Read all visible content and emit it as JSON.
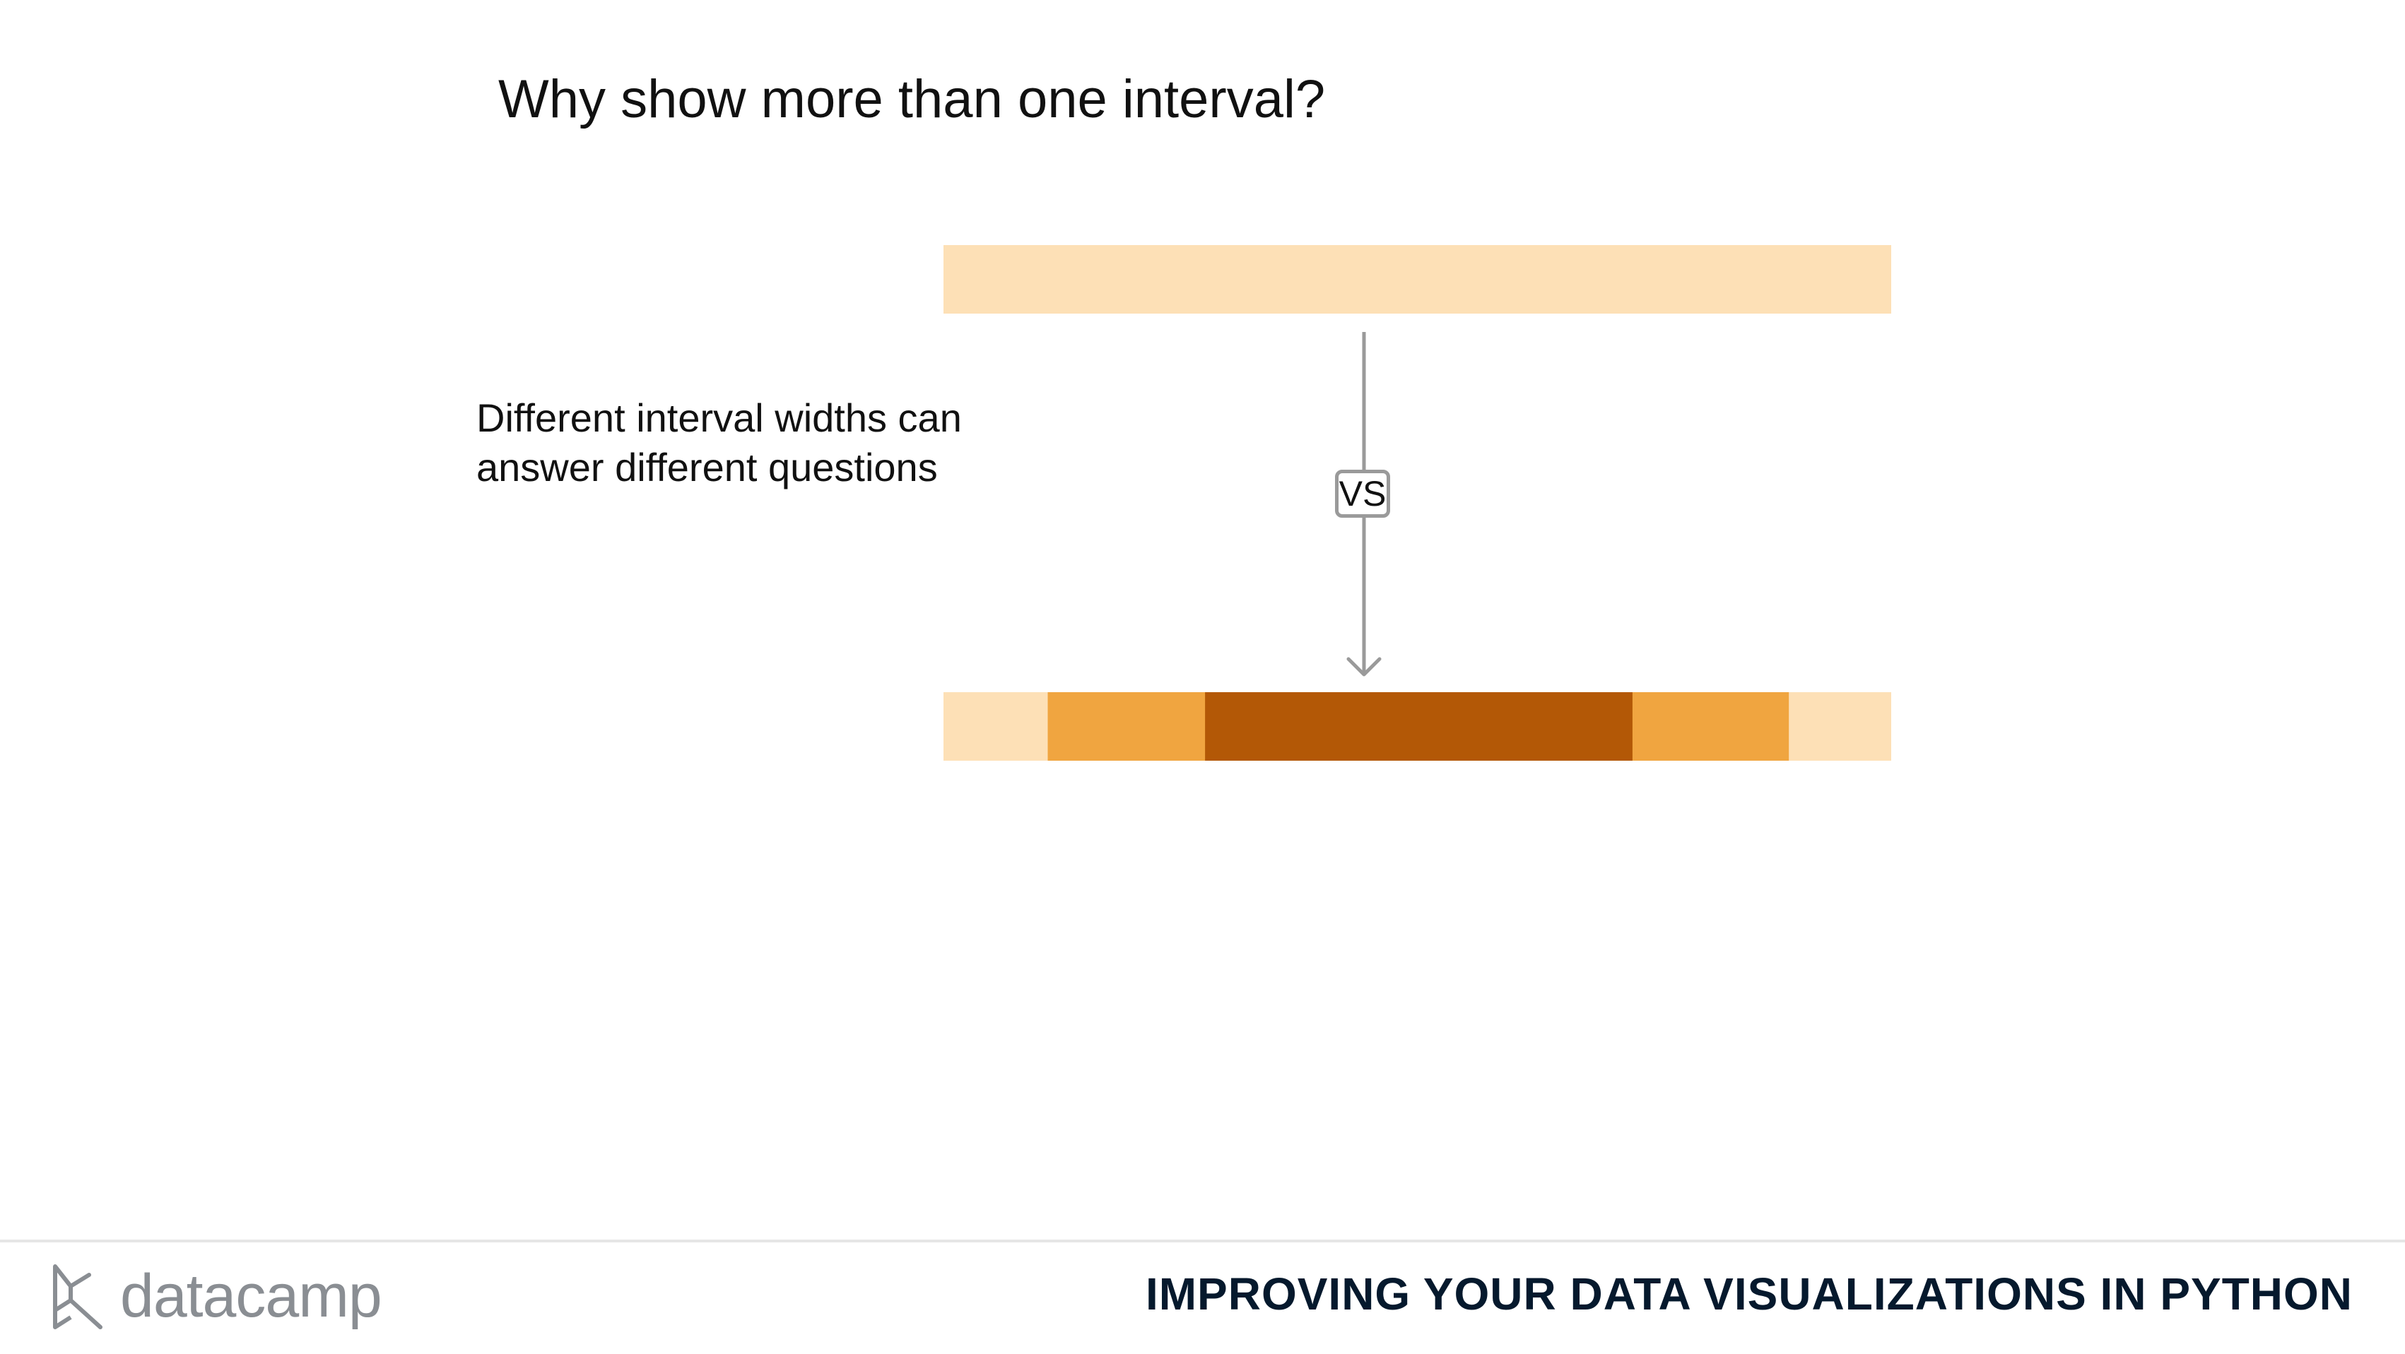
{
  "slide": {
    "title": "Why show more than one interval?",
    "caption_lines": [
      "Different interval widths can",
      "answer different questions"
    ],
    "comparison_label": "VS"
  },
  "intervals": {
    "single": {
      "segments": [
        {
          "start": 0,
          "end": 1,
          "color": "#fde0b6"
        }
      ]
    },
    "multiple": {
      "segments": [
        {
          "start": 0.0,
          "end": 0.11,
          "color": "#fde0b6"
        },
        {
          "start": 0.11,
          "end": 0.276,
          "color": "#f0a540"
        },
        {
          "start": 0.276,
          "end": 0.727,
          "color": "#b35806"
        },
        {
          "start": 0.727,
          "end": 0.892,
          "color": "#f0a540"
        },
        {
          "start": 0.892,
          "end": 1.0,
          "color": "#fde0b6"
        }
      ]
    }
  },
  "footer": {
    "brand": "datacamp",
    "logo_icon": "datacamp-logo-icon",
    "course_title": "IMPROVING YOUR DATA VISUALIZATIONS IN PYTHON"
  },
  "colors": {
    "light": "#fde0b6",
    "medium": "#f0a540",
    "dark": "#b35806",
    "connector": "#9a9a9a",
    "brand_text": "#8a8e93",
    "course_title": "#05192d"
  }
}
